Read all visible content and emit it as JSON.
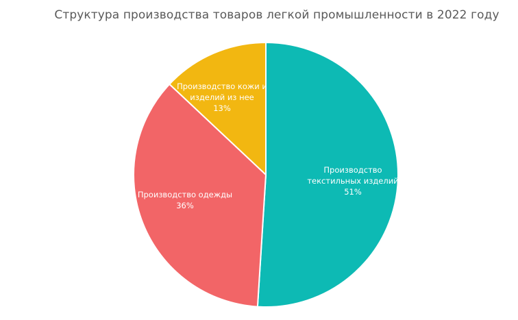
{
  "chart_data": {
    "type": "pie",
    "title": "Структура производства товаров легкой промышленности в 2022 году",
    "categories": [
      "Производство текстильных изделий",
      "Производство одежды",
      "Производство кожи и изделий из нее"
    ],
    "values": [
      51,
      36,
      13
    ],
    "unit": "%",
    "colors": [
      "#0dbab4",
      "#f26567",
      "#f2b711"
    ],
    "legend": "none",
    "data_labels": [
      {
        "line1": "Производство",
        "line2": "текстильных изделий",
        "pct": "51%"
      },
      {
        "line1": "Производство одежды",
        "line2": "",
        "pct": "36%"
      },
      {
        "line1": "Производство кожи и",
        "line2": "изделий из нее",
        "pct": "13%"
      }
    ]
  }
}
